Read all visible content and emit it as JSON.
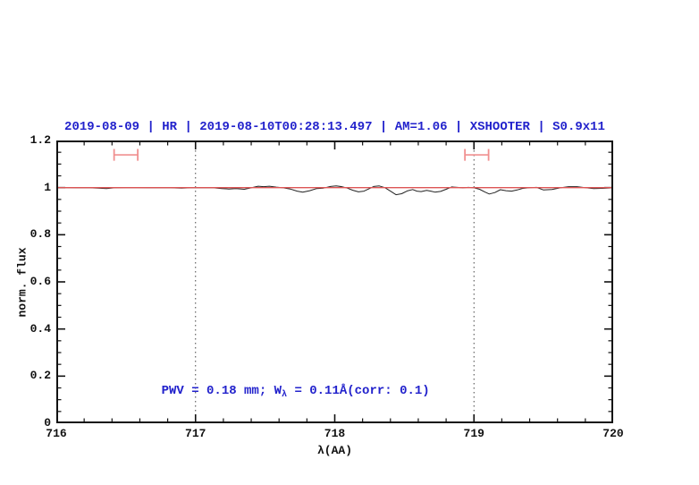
{
  "colors": {
    "accent_blue": "#2222cc",
    "spectrum": "#222222",
    "model_red": "#dd5555",
    "error_bar_red": "#f09090",
    "axis_black": "#111111",
    "dotted_line": "#444444"
  },
  "title": {
    "text": "2019-08-09 | HR | 2019-08-10T00:28:13.497 | AM=1.06 | XSHOOTER | S0.9x11"
  },
  "annotation": {
    "part1": "PWV = 0.18 mm; W",
    "subscript": "λ",
    "part2": " = 0.11Å(corr: 0.1)"
  },
  "chart_data": {
    "type": "line",
    "title": "2019-08-09 | HR | 2019-08-10T00:28:13.497 | AM=1.06 | XSHOOTER | S0.9x11",
    "xlabel": "λ(AA)",
    "ylabel": "norm. flux",
    "xlim": [
      716,
      720
    ],
    "ylim": [
      0,
      1.2
    ],
    "grid": false,
    "x_major_ticks": [
      716,
      717,
      718,
      719,
      720
    ],
    "x_tick_labels": [
      "716",
      "717",
      "718",
      "719",
      "720"
    ],
    "x_minor_step": 0.2,
    "y_major_ticks": [
      0,
      0.2,
      0.4,
      0.6,
      0.8,
      1,
      1.2
    ],
    "y_tick_labels": [
      "0",
      "0.2",
      "0.4",
      "0.6",
      "0.8",
      "1",
      "1.2"
    ],
    "y_minor_step": 0.05,
    "dotted_vertical_lines_x": [
      717,
      719
    ],
    "series": [
      {
        "name": "observed-spectrum",
        "color": "#222222",
        "width": 1,
        "points": [
          [
            716.0,
            1.0
          ],
          [
            716.08,
            1.0
          ],
          [
            716.15,
            0.999
          ],
          [
            716.22,
            1.0
          ],
          [
            716.3,
            0.998
          ],
          [
            716.36,
            0.996
          ],
          [
            716.42,
            0.999
          ],
          [
            716.5,
            1.0
          ],
          [
            716.58,
            1.0
          ],
          [
            716.66,
            0.999
          ],
          [
            716.74,
            1.0
          ],
          [
            716.82,
            0.999
          ],
          [
            716.9,
            0.998
          ],
          [
            716.98,
            1.0
          ],
          [
            717.06,
            0.999
          ],
          [
            717.12,
            1.0
          ],
          [
            717.19,
            0.996
          ],
          [
            717.24,
            0.994
          ],
          [
            717.29,
            0.996
          ],
          [
            717.35,
            0.993
          ],
          [
            717.4,
            0.999
          ],
          [
            717.45,
            1.006
          ],
          [
            717.49,
            1.004
          ],
          [
            717.53,
            1.006
          ],
          [
            717.58,
            1.002
          ],
          [
            717.63,
            0.999
          ],
          [
            717.68,
            0.994
          ],
          [
            717.73,
            0.985
          ],
          [
            717.77,
            0.981
          ],
          [
            717.82,
            0.987
          ],
          [
            717.87,
            0.996
          ],
          [
            717.92,
            0.998
          ],
          [
            717.97,
            1.005
          ],
          [
            718.01,
            1.007
          ],
          [
            718.05,
            1.004
          ],
          [
            718.09,
            0.998
          ],
          [
            718.13,
            0.989
          ],
          [
            718.17,
            0.982
          ],
          [
            718.21,
            0.985
          ],
          [
            718.25,
            0.996
          ],
          [
            718.28,
            1.005
          ],
          [
            718.32,
            1.007
          ],
          [
            718.36,
            1.0
          ],
          [
            718.4,
            0.985
          ],
          [
            718.44,
            0.97
          ],
          [
            718.48,
            0.974
          ],
          [
            718.52,
            0.986
          ],
          [
            718.56,
            0.992
          ],
          [
            718.59,
            0.985
          ],
          [
            718.62,
            0.983
          ],
          [
            718.66,
            0.988
          ],
          [
            718.69,
            0.985
          ],
          [
            718.72,
            0.981
          ],
          [
            718.76,
            0.984
          ],
          [
            718.8,
            0.993
          ],
          [
            718.84,
            1.003
          ],
          [
            718.88,
            1.001
          ],
          [
            718.92,
            0.999
          ],
          [
            718.96,
            1.001
          ],
          [
            719.0,
            0.999
          ],
          [
            719.04,
            0.993
          ],
          [
            719.08,
            0.981
          ],
          [
            719.11,
            0.973
          ],
          [
            719.15,
            0.979
          ],
          [
            719.19,
            0.991
          ],
          [
            719.23,
            0.987
          ],
          [
            719.27,
            0.985
          ],
          [
            719.31,
            0.99
          ],
          [
            719.35,
            0.997
          ],
          [
            719.4,
            1.0
          ],
          [
            719.45,
            1.001
          ],
          [
            719.5,
            0.99
          ],
          [
            719.56,
            0.992
          ],
          [
            719.62,
            0.999
          ],
          [
            719.68,
            1.004
          ],
          [
            719.74,
            1.004
          ],
          [
            719.8,
            1.0
          ],
          [
            719.86,
            0.996
          ],
          [
            719.92,
            0.997
          ],
          [
            720.0,
            0.999
          ]
        ]
      },
      {
        "name": "pwv-model",
        "color": "#dd5555",
        "width": 1.3,
        "points": [
          [
            716.0,
            1.0
          ],
          [
            720.0,
            1.0
          ]
        ]
      }
    ],
    "error_bars": [
      {
        "x_center": 716.5,
        "x_half_width": 0.085,
        "y": 1.139,
        "cap_half_height": 0.025
      },
      {
        "x_center": 719.02,
        "x_half_width": 0.085,
        "y": 1.139,
        "cap_half_height": 0.025
      }
    ],
    "annotation_text": "PWV = 0.18 mm; Wλ = 0.11Å(corr: 0.1)"
  }
}
